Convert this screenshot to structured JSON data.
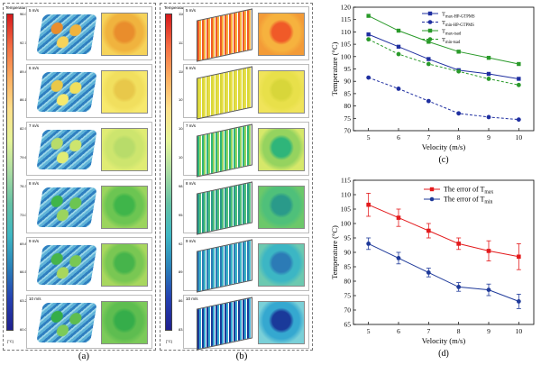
{
  "panel_a": {
    "caption": "(a)",
    "colorbar_title": "Temperature",
    "colorbar_unit": "[°C]",
    "colorbar_ticks": [
      "96.00",
      "92.73",
      "89.45",
      "86.18",
      "82.91",
      "79.64",
      "76.36",
      "73.09",
      "69.82",
      "66.55",
      "63.27",
      "60.00"
    ],
    "cells": [
      {
        "label": "5 m/s"
      },
      {
        "label": "6 m/s"
      },
      {
        "label": "7 m/s"
      },
      {
        "label": "8 m/s"
      },
      {
        "label": "9 m/s"
      },
      {
        "label": "10 m/s"
      }
    ]
  },
  "panel_b": {
    "caption": "(b)",
    "colorbar_title": "Temperature",
    "colorbar_unit": "[°C]",
    "colorbar_ticks": [
      "116.5",
      "113.5",
      "110.4",
      "107.4",
      "104.3",
      "101.3",
      "98.2",
      "95.2",
      "92.1",
      "89.1",
      "86.1",
      "83.0"
    ],
    "cells": [
      {
        "label": "5 m/s"
      },
      {
        "label": "6 m/s"
      },
      {
        "label": "7 m/s"
      },
      {
        "label": "8 m/s"
      },
      {
        "label": "9 m/s"
      },
      {
        "label": "10 m/s"
      }
    ]
  },
  "colors": {
    "blue": "#1f2fa0",
    "green": "#2a9a2a",
    "red": "#e31a1c",
    "navy": "#1f3a9a"
  },
  "chart_data": [
    {
      "type": "line",
      "caption": "(c)",
      "xlabel": "Velocity (m/s)",
      "ylabel": "Temperature (°C)",
      "x": [
        5,
        6,
        7,
        8,
        9,
        10
      ],
      "xlim": [
        4.5,
        10.5
      ],
      "ylim": [
        70,
        120
      ],
      "xticks": [
        5,
        6,
        7,
        8,
        9,
        10
      ],
      "yticks": [
        70,
        75,
        80,
        85,
        90,
        95,
        100,
        105,
        110,
        115,
        120
      ],
      "legend_position": "top-right",
      "series": [
        {
          "name": "T_max-HP-GTPMS",
          "legend_main": "T",
          "legend_sub": "max-HP-GTPMS",
          "color": "#1f2fa0",
          "dash": false,
          "values": [
            109,
            104,
            99,
            94.5,
            93,
            91
          ]
        },
        {
          "name": "T_min-HP-GTPMS",
          "legend_main": "T",
          "legend_sub": "min-HP-GTPMS",
          "color": "#1f2fa0",
          "dash": true,
          "values": [
            91.5,
            87,
            82,
            77,
            75.5,
            74.5
          ]
        },
        {
          "name": "T_max-tsad",
          "legend_main": "T",
          "legend_sub": "max-tsad",
          "color": "#2a9a2a",
          "dash": false,
          "values": [
            116.5,
            110.5,
            106,
            102,
            99.5,
            97
          ]
        },
        {
          "name": "T_min-tsad",
          "legend_main": "T",
          "legend_sub": "min-tsad",
          "color": "#2a9a2a",
          "dash": true,
          "values": [
            107,
            101,
            97,
            94,
            91,
            88.5
          ]
        }
      ]
    },
    {
      "type": "line",
      "caption": "(d)",
      "xlabel": "Velocity (m/s)",
      "ylabel": "Temperature (°C)",
      "x": [
        5,
        6,
        7,
        8,
        9,
        10
      ],
      "xlim": [
        4.5,
        10.5
      ],
      "ylim": [
        65,
        115
      ],
      "xticks": [
        5,
        6,
        7,
        8,
        9,
        10
      ],
      "yticks": [
        65,
        70,
        75,
        80,
        85,
        90,
        95,
        100,
        105,
        110,
        115
      ],
      "legend_position": "top-right",
      "series": [
        {
          "name": "The error of T_max",
          "legend_main": "The error of T",
          "legend_sub": "max",
          "color": "#e31a1c",
          "marker": "square",
          "values": [
            106.5,
            102,
            97.5,
            93,
            90.5,
            88.5
          ],
          "errors": [
            4,
            3,
            2.5,
            2,
            3.5,
            4.5
          ]
        },
        {
          "name": "The error of T_min",
          "legend_main": "The error of T",
          "legend_sub": "min",
          "color": "#1f3a9a",
          "marker": "circle",
          "values": [
            93,
            88,
            83,
            78,
            77,
            73
          ],
          "errors": [
            2,
            2,
            1.5,
            1.5,
            2,
            2.5
          ]
        }
      ]
    }
  ]
}
